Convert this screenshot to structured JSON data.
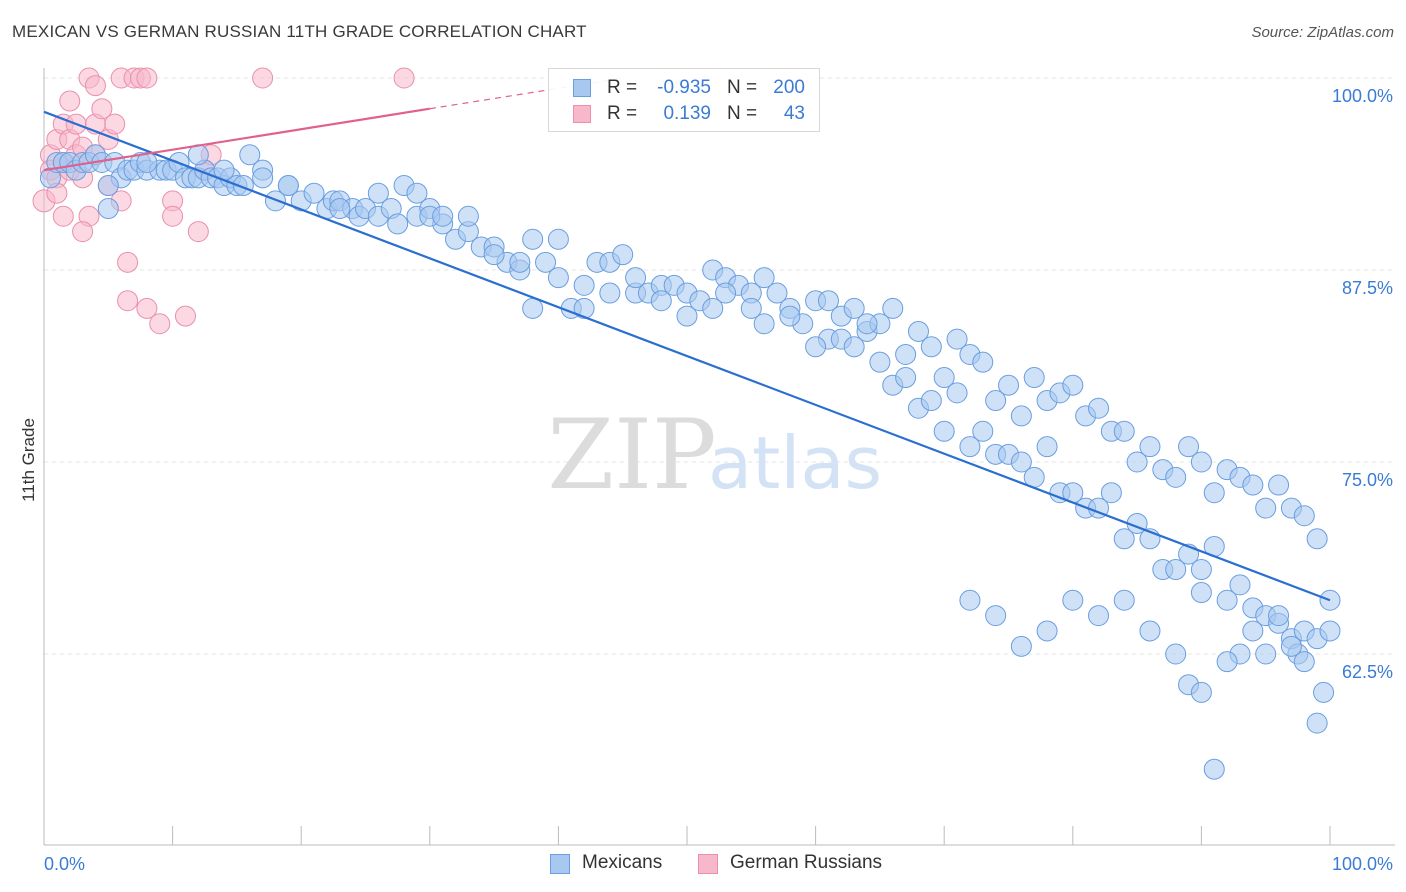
{
  "title": "MEXICAN VS GERMAN RUSSIAN 11TH GRADE CORRELATION CHART",
  "source": "Source: ZipAtlas.com",
  "watermark": {
    "zip": "ZIP",
    "atlas": "atlas"
  },
  "legend": {
    "rows": [
      {
        "r_label": "R =",
        "r_value": "-0.935",
        "n_label": "N =",
        "n_value": "200"
      },
      {
        "r_label": "R =",
        "r_value": "0.139",
        "n_label": "N =",
        "n_value": "43"
      }
    ]
  },
  "bottom_legend": {
    "series1": "Mexicans",
    "series2": "German Russians"
  },
  "colors": {
    "blue_fill": "#a8c8f0",
    "blue_stroke": "#6a9ee0",
    "blue_line": "#2a6fd0",
    "pink_fill": "#f7b8cb",
    "pink_stroke": "#ea8fae",
    "pink_line": "#e0618c",
    "axis_text": "#3a7bd5",
    "grid": "#e6e6e6"
  },
  "chart_data": {
    "type": "scatter",
    "title": "MEXICAN VS GERMAN RUSSIAN 11TH GRADE CORRELATION CHART",
    "xlabel": "",
    "ylabel": "11th Grade",
    "xlim": [
      0,
      100
    ],
    "ylim": [
      52.5,
      101.5
    ],
    "x_tick_labels": [
      "0.0%",
      "100.0%"
    ],
    "y_ticks": [
      62.5,
      75.0,
      87.5,
      100.0
    ],
    "y_tick_labels": [
      "62.5%",
      "75.0%",
      "87.5%",
      "100.0%"
    ],
    "series": [
      {
        "name": "Mexicans",
        "R": -0.935,
        "N": 200,
        "trend": {
          "x": [
            0,
            100
          ],
          "y": [
            97.8,
            66.0
          ]
        },
        "points": [
          [
            0.5,
            93.5
          ],
          [
            1,
            94.5
          ],
          [
            1.5,
            94.5
          ],
          [
            2,
            94.5
          ],
          [
            2.5,
            94
          ],
          [
            3,
            94.5
          ],
          [
            3.5,
            94.5
          ],
          [
            4,
            95
          ],
          [
            4.5,
            94.5
          ],
          [
            5,
            91.5
          ],
          [
            5.5,
            94.5
          ],
          [
            6,
            93.5
          ],
          [
            6.5,
            94
          ],
          [
            7,
            94
          ],
          [
            7.5,
            94.5
          ],
          [
            8,
            94
          ],
          [
            9,
            94
          ],
          [
            9.5,
            94
          ],
          [
            10,
            94
          ],
          [
            10.5,
            94.5
          ],
          [
            11,
            93.5
          ],
          [
            11.5,
            93.5
          ],
          [
            12,
            93.5
          ],
          [
            12.5,
            94
          ],
          [
            13,
            93.5
          ],
          [
            13.5,
            93.5
          ],
          [
            14,
            93
          ],
          [
            14.5,
            93.5
          ],
          [
            15,
            93
          ],
          [
            15.5,
            93
          ],
          [
            16,
            95
          ],
          [
            17,
            94
          ],
          [
            18,
            92
          ],
          [
            19,
            93
          ],
          [
            20,
            92
          ],
          [
            21,
            92.5
          ],
          [
            22,
            91.5
          ],
          [
            22.5,
            92
          ],
          [
            23,
            92
          ],
          [
            24,
            91.5
          ],
          [
            24.5,
            91
          ],
          [
            25,
            91.5
          ],
          [
            26,
            91
          ],
          [
            27,
            91.5
          ],
          [
            27.5,
            90.5
          ],
          [
            28,
            93
          ],
          [
            29,
            91
          ],
          [
            30,
            91.5
          ],
          [
            31,
            90.5
          ],
          [
            32,
            89.5
          ],
          [
            33,
            90
          ],
          [
            34,
            89
          ],
          [
            35,
            89
          ],
          [
            36,
            88
          ],
          [
            37,
            87.5
          ],
          [
            38,
            89.5
          ],
          [
            39,
            88
          ],
          [
            40,
            89.5
          ],
          [
            41,
            85
          ],
          [
            42,
            85
          ],
          [
            43,
            88
          ],
          [
            44,
            88
          ],
          [
            45,
            88.5
          ],
          [
            46,
            86
          ],
          [
            47,
            86
          ],
          [
            48,
            86.5
          ],
          [
            49,
            86.5
          ],
          [
            50,
            86
          ],
          [
            51,
            85.5
          ],
          [
            52,
            87.5
          ],
          [
            53,
            87
          ],
          [
            54,
            86.5
          ],
          [
            55,
            86
          ],
          [
            56,
            87
          ],
          [
            57,
            86
          ],
          [
            58,
            85
          ],
          [
            59,
            84
          ],
          [
            60,
            85.5
          ],
          [
            61,
            83
          ],
          [
            62,
            84.5
          ],
          [
            63,
            85
          ],
          [
            64,
            83.5
          ],
          [
            65,
            84
          ],
          [
            66,
            85
          ],
          [
            67,
            82
          ],
          [
            68,
            83.5
          ],
          [
            69,
            82.5
          ],
          [
            70,
            80.5
          ],
          [
            71,
            83
          ],
          [
            72,
            82
          ],
          [
            73,
            81.5
          ],
          [
            74,
            79
          ],
          [
            75,
            80
          ],
          [
            76,
            78
          ],
          [
            77,
            80.5
          ],
          [
            78,
            79
          ],
          [
            79,
            79.5
          ],
          [
            80,
            80
          ],
          [
            81,
            78
          ],
          [
            82,
            78.5
          ],
          [
            83,
            77
          ],
          [
            84,
            77
          ],
          [
            85,
            75
          ],
          [
            86,
            76
          ],
          [
            87,
            74.5
          ],
          [
            88,
            74
          ],
          [
            89,
            76
          ],
          [
            90,
            75
          ],
          [
            91,
            73
          ],
          [
            92,
            74.5
          ],
          [
            93,
            74
          ],
          [
            94,
            73.5
          ],
          [
            95,
            72
          ],
          [
            96,
            73.5
          ],
          [
            97,
            72
          ],
          [
            98,
            71.5
          ],
          [
            99,
            70
          ],
          [
            100,
            66
          ],
          [
            5,
            93
          ],
          [
            8,
            94.5
          ],
          [
            12,
            95
          ],
          [
            14,
            94
          ],
          [
            17,
            93.5
          ],
          [
            19,
            93
          ],
          [
            23,
            91.5
          ],
          [
            26,
            92.5
          ],
          [
            29,
            92.5
          ],
          [
            30,
            91
          ],
          [
            31,
            91
          ],
          [
            33,
            91
          ],
          [
            35,
            88.5
          ],
          [
            37,
            88
          ],
          [
            38,
            85
          ],
          [
            40,
            87
          ],
          [
            42,
            86.5
          ],
          [
            44,
            86
          ],
          [
            46,
            87
          ],
          [
            48,
            85.5
          ],
          [
            50,
            84.5
          ],
          [
            52,
            85
          ],
          [
            53,
            86
          ],
          [
            55,
            85
          ],
          [
            56,
            84
          ],
          [
            58,
            84.5
          ],
          [
            60,
            82.5
          ],
          [
            61,
            85.5
          ],
          [
            62,
            83
          ],
          [
            63,
            82.5
          ],
          [
            64,
            84
          ],
          [
            65,
            81.5
          ],
          [
            66,
            80
          ],
          [
            67,
            80.5
          ],
          [
            68,
            78.5
          ],
          [
            69,
            79
          ],
          [
            70,
            77
          ],
          [
            71,
            79.5
          ],
          [
            72,
            76
          ],
          [
            73,
            77
          ],
          [
            74,
            75.5
          ],
          [
            75,
            75.5
          ],
          [
            76,
            75
          ],
          [
            77,
            74
          ],
          [
            78,
            76
          ],
          [
            79,
            73
          ],
          [
            80,
            73
          ],
          [
            81,
            72
          ],
          [
            82,
            72
          ],
          [
            83,
            73
          ],
          [
            84,
            70
          ],
          [
            85,
            71
          ],
          [
            86,
            70
          ],
          [
            87,
            68
          ],
          [
            88,
            68
          ],
          [
            89,
            69
          ],
          [
            90,
            68
          ],
          [
            91,
            69.5
          ],
          [
            92,
            66
          ],
          [
            93,
            67
          ],
          [
            94,
            65.5
          ],
          [
            95,
            65
          ],
          [
            96,
            64.5
          ],
          [
            97,
            63.5
          ],
          [
            98,
            64
          ],
          [
            99,
            63.5
          ],
          [
            100,
            64
          ],
          [
            97.5,
            62.5
          ],
          [
            99.5,
            60
          ],
          [
            90,
            66.5
          ],
          [
            93,
            62.5
          ],
          [
            95,
            62.5
          ],
          [
            96,
            65
          ],
          [
            97,
            63
          ],
          [
            98,
            62
          ],
          [
            99,
            58
          ],
          [
            92,
            62
          ],
          [
            94,
            64
          ],
          [
            89,
            60.5
          ],
          [
            91,
            55
          ],
          [
            86,
            64
          ],
          [
            88,
            62.5
          ],
          [
            90,
            60
          ],
          [
            84,
            66
          ],
          [
            82,
            65
          ],
          [
            80,
            66
          ],
          [
            78,
            64
          ],
          [
            76,
            63
          ],
          [
            74,
            65
          ],
          [
            72,
            66
          ]
        ]
      },
      {
        "name": "German Russians",
        "R": 0.139,
        "N": 43,
        "trend": {
          "x": [
            0,
            30
          ],
          "y": [
            94.0,
            98.0
          ]
        },
        "trend_dashed": {
          "x": [
            30,
            100
          ],
          "y": [
            98.0,
            107.3
          ]
        },
        "points": [
          [
            0,
            92
          ],
          [
            0.5,
            95
          ],
          [
            0.5,
            94
          ],
          [
            1,
            96
          ],
          [
            1,
            93.5
          ],
          [
            1,
            92.5
          ],
          [
            1.5,
            94.5
          ],
          [
            1.5,
            97
          ],
          [
            2,
            98.5
          ],
          [
            2,
            96
          ],
          [
            2,
            94
          ],
          [
            2.5,
            97
          ],
          [
            2.5,
            95
          ],
          [
            3,
            95.5
          ],
          [
            3,
            93.5
          ],
          [
            3.5,
            91
          ],
          [
            3.5,
            100
          ],
          [
            4,
            99.5
          ],
          [
            4,
            97
          ],
          [
            4,
            95
          ],
          [
            4.5,
            98
          ],
          [
            5,
            96
          ],
          [
            5,
            93
          ],
          [
            5.5,
            97
          ],
          [
            6,
            100
          ],
          [
            6,
            92
          ],
          [
            6.5,
            88
          ],
          [
            6.5,
            85.5
          ],
          [
            7,
            100
          ],
          [
            7.5,
            100
          ],
          [
            8,
            100
          ],
          [
            8,
            85
          ],
          [
            9,
            84
          ],
          [
            10,
            92
          ],
          [
            10,
            91
          ],
          [
            11,
            84.5
          ],
          [
            12,
            90
          ],
          [
            12.5,
            94
          ],
          [
            13,
            95
          ],
          [
            17,
            100
          ],
          [
            28,
            100
          ],
          [
            3,
            90
          ],
          [
            1.5,
            91
          ]
        ]
      }
    ]
  }
}
